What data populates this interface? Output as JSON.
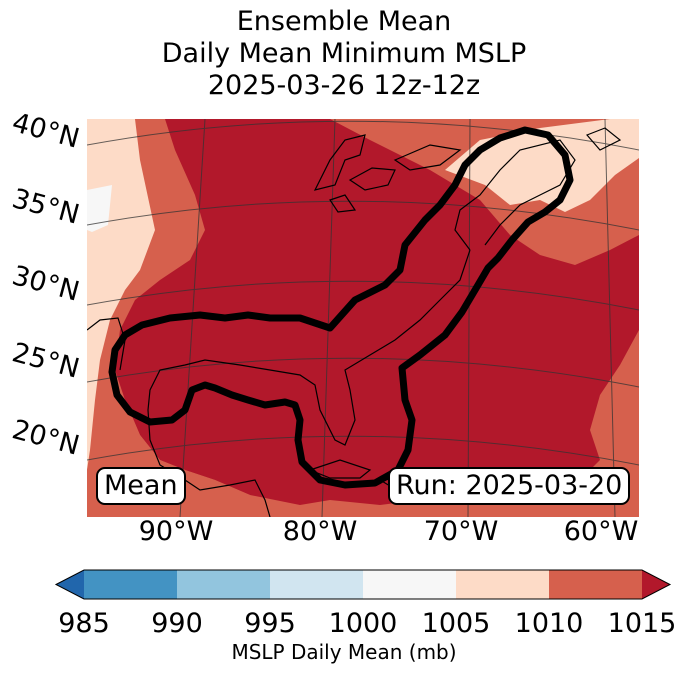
{
  "title": {
    "line1": "Ensemble Mean",
    "line2": "Daily Mean Minimum MSLP",
    "line3": "2025-03-26 12z-12z"
  },
  "map": {
    "lat_labels": [
      "40°N",
      "35°N",
      "30°N",
      "25°N",
      "20°N"
    ],
    "lon_labels": [
      "90°W",
      "80°W",
      "70°W",
      "60°W"
    ],
    "mean_label": "Mean",
    "run_label": "Run: 2025-03-20"
  },
  "colorbar": {
    "ticks": [
      "985",
      "990",
      "995",
      "1000",
      "1005",
      "1010",
      "1015"
    ],
    "label": "MSLP Daily Mean (mb)",
    "under_color": "#2166ac",
    "colors": [
      "#4393c3",
      "#92c5de",
      "#d1e5f0",
      "#f7f7f7",
      "#fddbc7",
      "#d6604d"
    ],
    "over_color": "#b2182b"
  }
}
